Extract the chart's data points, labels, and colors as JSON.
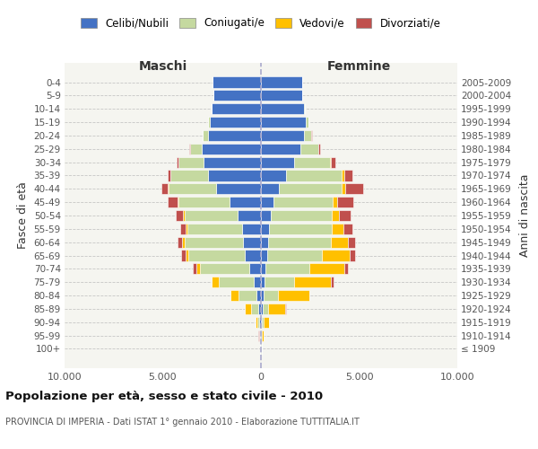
{
  "age_groups": [
    "100+",
    "95-99",
    "90-94",
    "85-89",
    "80-84",
    "75-79",
    "70-74",
    "65-69",
    "60-64",
    "55-59",
    "50-54",
    "45-49",
    "40-44",
    "35-39",
    "30-34",
    "25-29",
    "20-24",
    "15-19",
    "10-14",
    "5-9",
    "0-4"
  ],
  "birth_years": [
    "≤ 1909",
    "1910-1914",
    "1915-1919",
    "1920-1924",
    "1925-1929",
    "1930-1934",
    "1935-1939",
    "1940-1944",
    "1945-1949",
    "1950-1954",
    "1955-1959",
    "1960-1964",
    "1965-1969",
    "1970-1974",
    "1975-1979",
    "1980-1984",
    "1985-1989",
    "1990-1994",
    "1995-1999",
    "2000-2004",
    "2005-2009"
  ],
  "colors": {
    "celibi": "#4472C4",
    "coniugati": "#c5d9a0",
    "vedovi": "#ffc000",
    "divorziati": "#c0504d"
  },
  "males": {
    "celibi": [
      30,
      60,
      80,
      120,
      250,
      350,
      600,
      800,
      900,
      950,
      1200,
      1600,
      2300,
      2700,
      2900,
      3000,
      2700,
      2600,
      2500,
      2400,
      2450
    ],
    "coniugati": [
      10,
      30,
      100,
      400,
      900,
      1800,
      2500,
      2900,
      3000,
      2800,
      2700,
      2600,
      2400,
      1900,
      1300,
      600,
      250,
      80,
      20,
      5,
      5
    ],
    "vedovi": [
      5,
      20,
      80,
      300,
      400,
      350,
      200,
      150,
      100,
      80,
      50,
      40,
      30,
      20,
      10,
      5,
      5,
      5,
      5,
      5,
      5
    ],
    "divorziati": [
      2,
      5,
      10,
      10,
      15,
      30,
      150,
      200,
      250,
      300,
      400,
      500,
      350,
      150,
      80,
      30,
      10,
      5,
      5,
      5,
      5
    ]
  },
  "females": {
    "celibi": [
      20,
      40,
      60,
      100,
      150,
      180,
      250,
      300,
      350,
      400,
      500,
      650,
      900,
      1300,
      1700,
      2000,
      2200,
      2300,
      2200,
      2100,
      2100
    ],
    "coniugati": [
      10,
      20,
      80,
      250,
      700,
      1500,
      2200,
      2800,
      3200,
      3200,
      3100,
      3000,
      3200,
      2800,
      1800,
      900,
      350,
      100,
      25,
      5,
      5
    ],
    "vedovi": [
      10,
      60,
      250,
      900,
      1600,
      1900,
      1800,
      1400,
      900,
      600,
      350,
      250,
      200,
      150,
      80,
      30,
      10,
      5,
      5,
      5,
      5
    ],
    "divorziati": [
      2,
      5,
      10,
      15,
      30,
      100,
      200,
      300,
      350,
      450,
      600,
      800,
      900,
      400,
      200,
      80,
      30,
      10,
      5,
      5,
      5
    ]
  },
  "xlim": 10000,
  "xticks": [
    -10000,
    -5000,
    0,
    5000,
    10000
  ],
  "xtick_labels": [
    "10.000",
    "5.000",
    "0",
    "5.000",
    "10.000"
  ],
  "title": "Popolazione per età, sesso e stato civile - 2010",
  "subtitle": "PROVINCIA DI IMPERIA - Dati ISTAT 1° gennaio 2010 - Elaborazione TUTTITALIA.IT",
  "ylabel_left": "Fasce di età",
  "ylabel_right": "Anni di nascita",
  "label_maschi": "Maschi",
  "label_femmine": "Femmine",
  "legend_labels": [
    "Celibi/Nubili",
    "Coniugati/e",
    "Vedovi/e",
    "Divorziati/e"
  ],
  "plot_bg": "#f5f5f0",
  "grid_color": "#bbbbbb"
}
